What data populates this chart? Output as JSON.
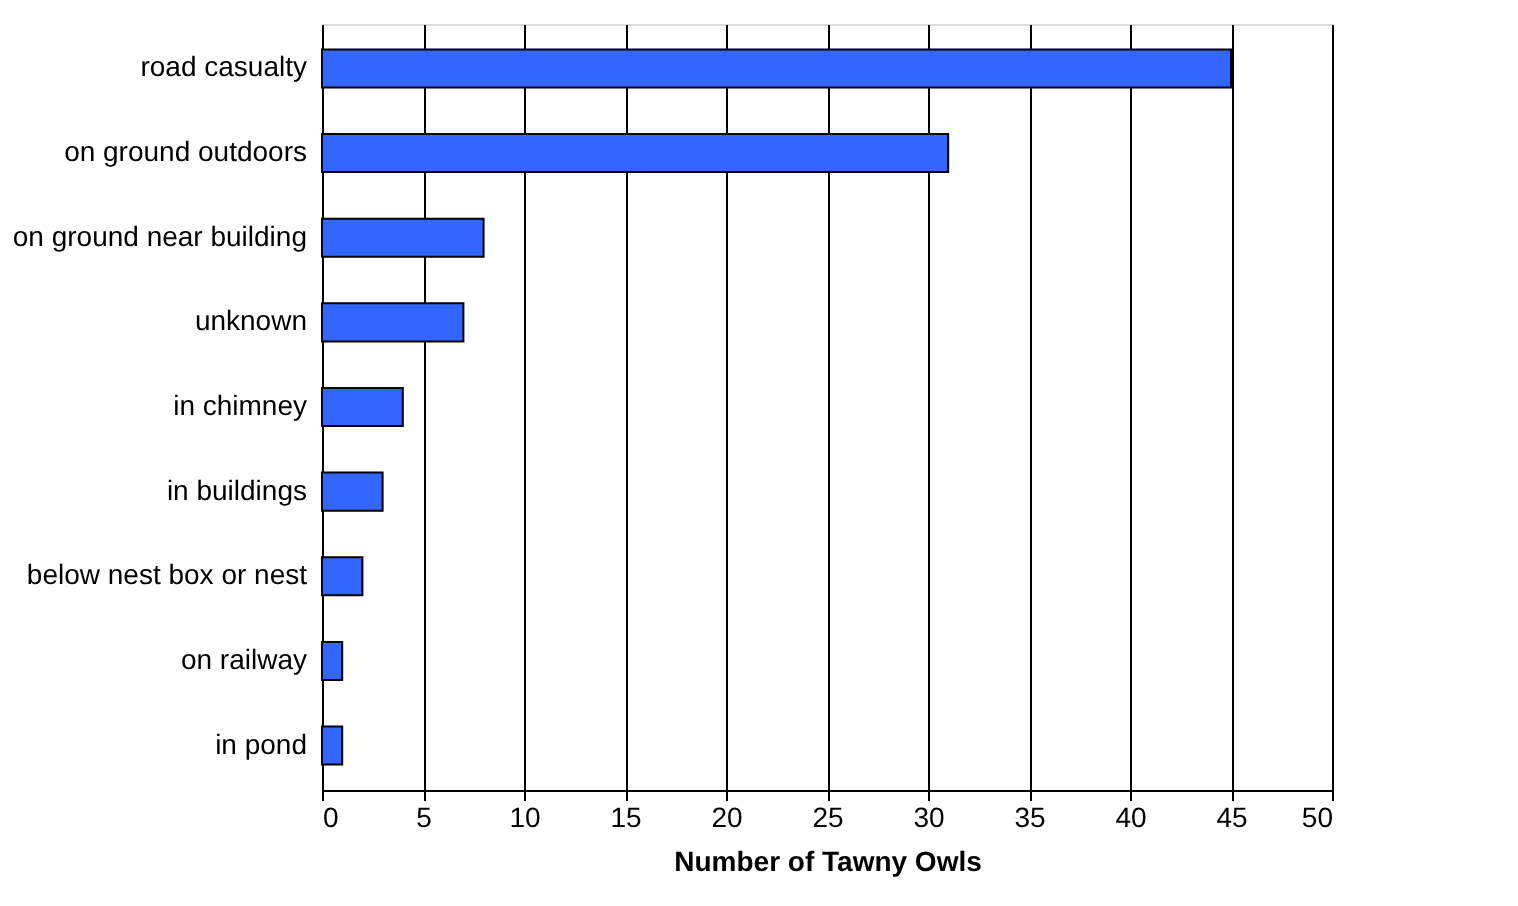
{
  "chart_data": {
    "type": "bar",
    "orientation": "horizontal",
    "categories": [
      "road casualty",
      "on ground outdoors",
      "on ground near building",
      "unknown",
      "in chimney",
      "in buildings",
      "below nest box or nest",
      "on railway",
      "in pond"
    ],
    "values": [
      45,
      31,
      8,
      7,
      4,
      3,
      2,
      1,
      1
    ],
    "color": "#3366ff",
    "xlabel": "Number of Tawny Owls",
    "xlim": [
      0,
      50
    ],
    "xticks": [
      0,
      5,
      10,
      15,
      20,
      25,
      30,
      35,
      40,
      45,
      50
    ],
    "grid": "x"
  }
}
